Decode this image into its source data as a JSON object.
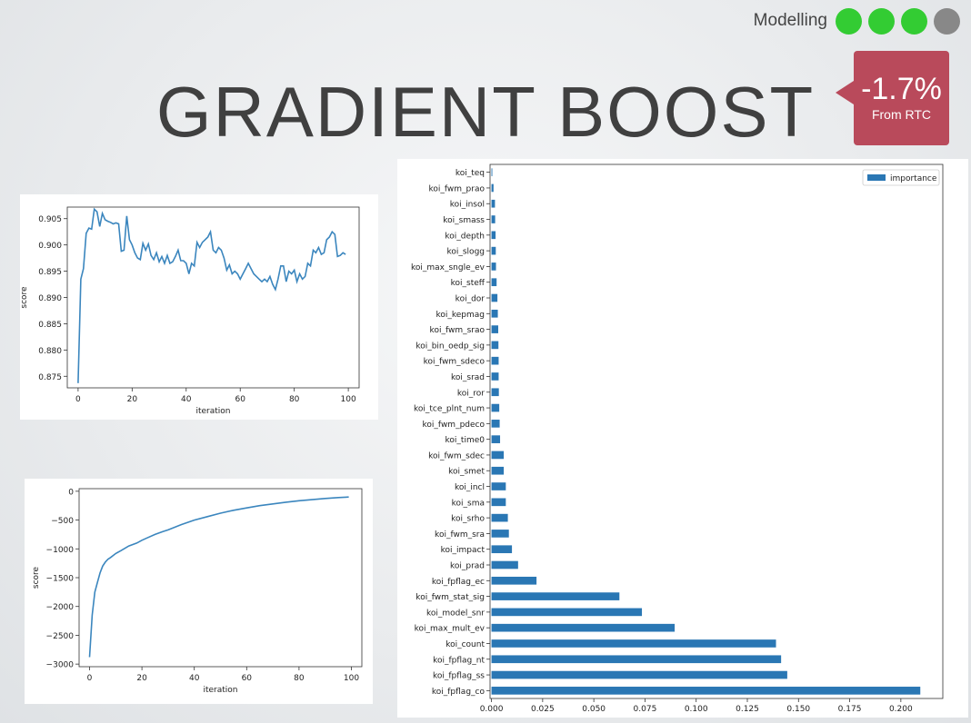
{
  "header": {
    "section_label": "Modelling",
    "progress_dots": [
      {
        "state": "done",
        "color": "#33cc33"
      },
      {
        "state": "done",
        "color": "#33cc33"
      },
      {
        "state": "done",
        "color": "#33cc33"
      },
      {
        "state": "pending",
        "color": "#888888"
      }
    ]
  },
  "slide": {
    "title": "GRADIENT BOOST"
  },
  "badge": {
    "value": "-1.7%",
    "sub": "From RTC",
    "color": "#b94a5b"
  },
  "chart_data": [
    {
      "type": "line",
      "xlabel": "iteration",
      "ylabel": "score",
      "xlim": [
        -4,
        104
      ],
      "ylim": [
        0.8728,
        0.9072
      ],
      "xticks": [
        0,
        20,
        40,
        60,
        80,
        100
      ],
      "xtick_labels": [
        "0",
        "20",
        "40",
        "60",
        "80",
        "100"
      ],
      "yticks": [
        0.875,
        0.88,
        0.885,
        0.89,
        0.895,
        0.9,
        0.905
      ],
      "ytick_labels": [
        "0.875",
        "0.880",
        "0.885",
        "0.890",
        "0.895",
        "0.900",
        "0.905"
      ],
      "grid": false,
      "color": "#3b86be",
      "x": [
        0,
        1,
        2,
        3,
        4,
        5,
        6,
        7,
        8,
        9,
        10,
        11,
        12,
        13,
        14,
        15,
        16,
        17,
        18,
        19,
        20,
        21,
        22,
        23,
        24,
        25,
        26,
        27,
        28,
        29,
        30,
        31,
        32,
        33,
        34,
        35,
        36,
        37,
        38,
        39,
        40,
        41,
        42,
        43,
        44,
        45,
        46,
        47,
        48,
        49,
        50,
        51,
        52,
        53,
        54,
        55,
        56,
        57,
        58,
        59,
        60,
        61,
        62,
        63,
        64,
        65,
        66,
        67,
        68,
        69,
        70,
        71,
        72,
        73,
        74,
        75,
        76,
        77,
        78,
        79,
        80,
        81,
        82,
        83,
        84,
        85,
        86,
        87,
        88,
        89,
        90,
        91,
        92,
        93,
        94,
        95,
        96,
        97,
        98,
        99
      ],
      "y": [
        0.8737,
        0.8935,
        0.8955,
        0.9022,
        0.9032,
        0.903,
        0.9068,
        0.9063,
        0.9035,
        0.906,
        0.9048,
        0.9045,
        0.9043,
        0.904,
        0.9042,
        0.904,
        0.8988,
        0.899,
        0.9055,
        0.901,
        0.9,
        0.8985,
        0.8975,
        0.8972,
        0.9003,
        0.899,
        0.9002,
        0.898,
        0.8972,
        0.8985,
        0.8968,
        0.8978,
        0.8965,
        0.898,
        0.8965,
        0.8968,
        0.8978,
        0.899,
        0.897,
        0.897,
        0.8965,
        0.8945,
        0.8965,
        0.896,
        0.9005,
        0.8995,
        0.9005,
        0.901,
        0.9015,
        0.9025,
        0.899,
        0.8985,
        0.8995,
        0.899,
        0.8975,
        0.8952,
        0.8962,
        0.8945,
        0.895,
        0.8945,
        0.8935,
        0.8945,
        0.8955,
        0.8965,
        0.8955,
        0.8945,
        0.894,
        0.8935,
        0.893,
        0.8935,
        0.893,
        0.894,
        0.8925,
        0.8915,
        0.8935,
        0.896,
        0.896,
        0.893,
        0.895,
        0.8945,
        0.8952,
        0.893,
        0.8945,
        0.8935,
        0.894,
        0.8965,
        0.896,
        0.899,
        0.8985,
        0.8995,
        0.8982,
        0.8985,
        0.901,
        0.9015,
        0.9025,
        0.902,
        0.8978,
        0.898,
        0.8985,
        0.8982
      ]
    },
    {
      "type": "line",
      "xlabel": "iteration",
      "ylabel": "score",
      "xlim": [
        -4,
        104
      ],
      "ylim": [
        -3045,
        45
      ],
      "xticks": [
        0,
        20,
        40,
        60,
        80,
        100
      ],
      "xtick_labels": [
        "0",
        "20",
        "40",
        "60",
        "80",
        "100"
      ],
      "yticks": [
        0,
        -500,
        -1000,
        -1500,
        -2000,
        -2500,
        -3000
      ],
      "ytick_labels": [
        "0",
        "−500",
        "−1000",
        "−1500",
        "−2000",
        "−2500",
        "−3000"
      ],
      "grid": false,
      "color": "#3b86be",
      "x": [
        0,
        1,
        2,
        3,
        4,
        5,
        6,
        7,
        8,
        10,
        12,
        15,
        18,
        20,
        22,
        25,
        28,
        30,
        35,
        40,
        45,
        50,
        55,
        60,
        65,
        70,
        75,
        80,
        85,
        90,
        95,
        99
      ],
      "y": [
        -2880,
        -2150,
        -1750,
        -1580,
        -1420,
        -1300,
        -1230,
        -1180,
        -1150,
        -1080,
        -1030,
        -950,
        -900,
        -850,
        -810,
        -750,
        -700,
        -670,
        -580,
        -500,
        -440,
        -380,
        -330,
        -290,
        -250,
        -220,
        -190,
        -165,
        -145,
        -125,
        -110,
        -100
      ]
    },
    {
      "type": "bar",
      "orientation": "horizontal",
      "categories": [
        "koi_fpflag_co",
        "koi_fpflag_ss",
        "koi_fpflag_nt",
        "koi_count",
        "koi_max_mult_ev",
        "koi_model_snr",
        "koi_fwm_stat_sig",
        "koi_fpflag_ec",
        "koi_prad",
        "koi_impact",
        "koi_fwm_sra",
        "koi_srho",
        "koi_sma",
        "koi_incl",
        "koi_smet",
        "koi_fwm_sdec",
        "koi_time0",
        "koi_fwm_pdeco",
        "koi_tce_plnt_num",
        "koi_ror",
        "koi_srad",
        "koi_fwm_sdeco",
        "koi_bin_oedp_sig",
        "koi_fwm_srao",
        "koi_kepmag",
        "koi_dor",
        "koi_steff",
        "koi_max_sngle_ev",
        "koi_slogg",
        "koi_depth",
        "koi_smass",
        "koi_insol",
        "koi_fwm_prao",
        "koi_teq"
      ],
      "series": [
        {
          "name": "importance",
          "values": [
            0.2095,
            0.1445,
            0.1415,
            0.139,
            0.0895,
            0.0735,
            0.0625,
            0.022,
            0.013,
            0.01,
            0.0085,
            0.008,
            0.007,
            0.007,
            0.006,
            0.006,
            0.0042,
            0.004,
            0.0038,
            0.0036,
            0.0035,
            0.0035,
            0.0034,
            0.0033,
            0.0031,
            0.0029,
            0.0025,
            0.0022,
            0.0021,
            0.002,
            0.0018,
            0.0017,
            0.001,
            0.0004
          ]
        }
      ],
      "xlim": [
        -0.0007,
        0.2205
      ],
      "xticks": [
        0,
        0.025,
        0.05,
        0.075,
        0.1,
        0.125,
        0.15,
        0.175,
        0.2
      ],
      "xtick_labels": [
        "0.000",
        "0.025",
        "0.050",
        "0.075",
        "0.100",
        "0.125",
        "0.150",
        "0.175",
        "0.200"
      ],
      "legend": "top-right",
      "grid": false,
      "color": "#2a77b4"
    }
  ]
}
